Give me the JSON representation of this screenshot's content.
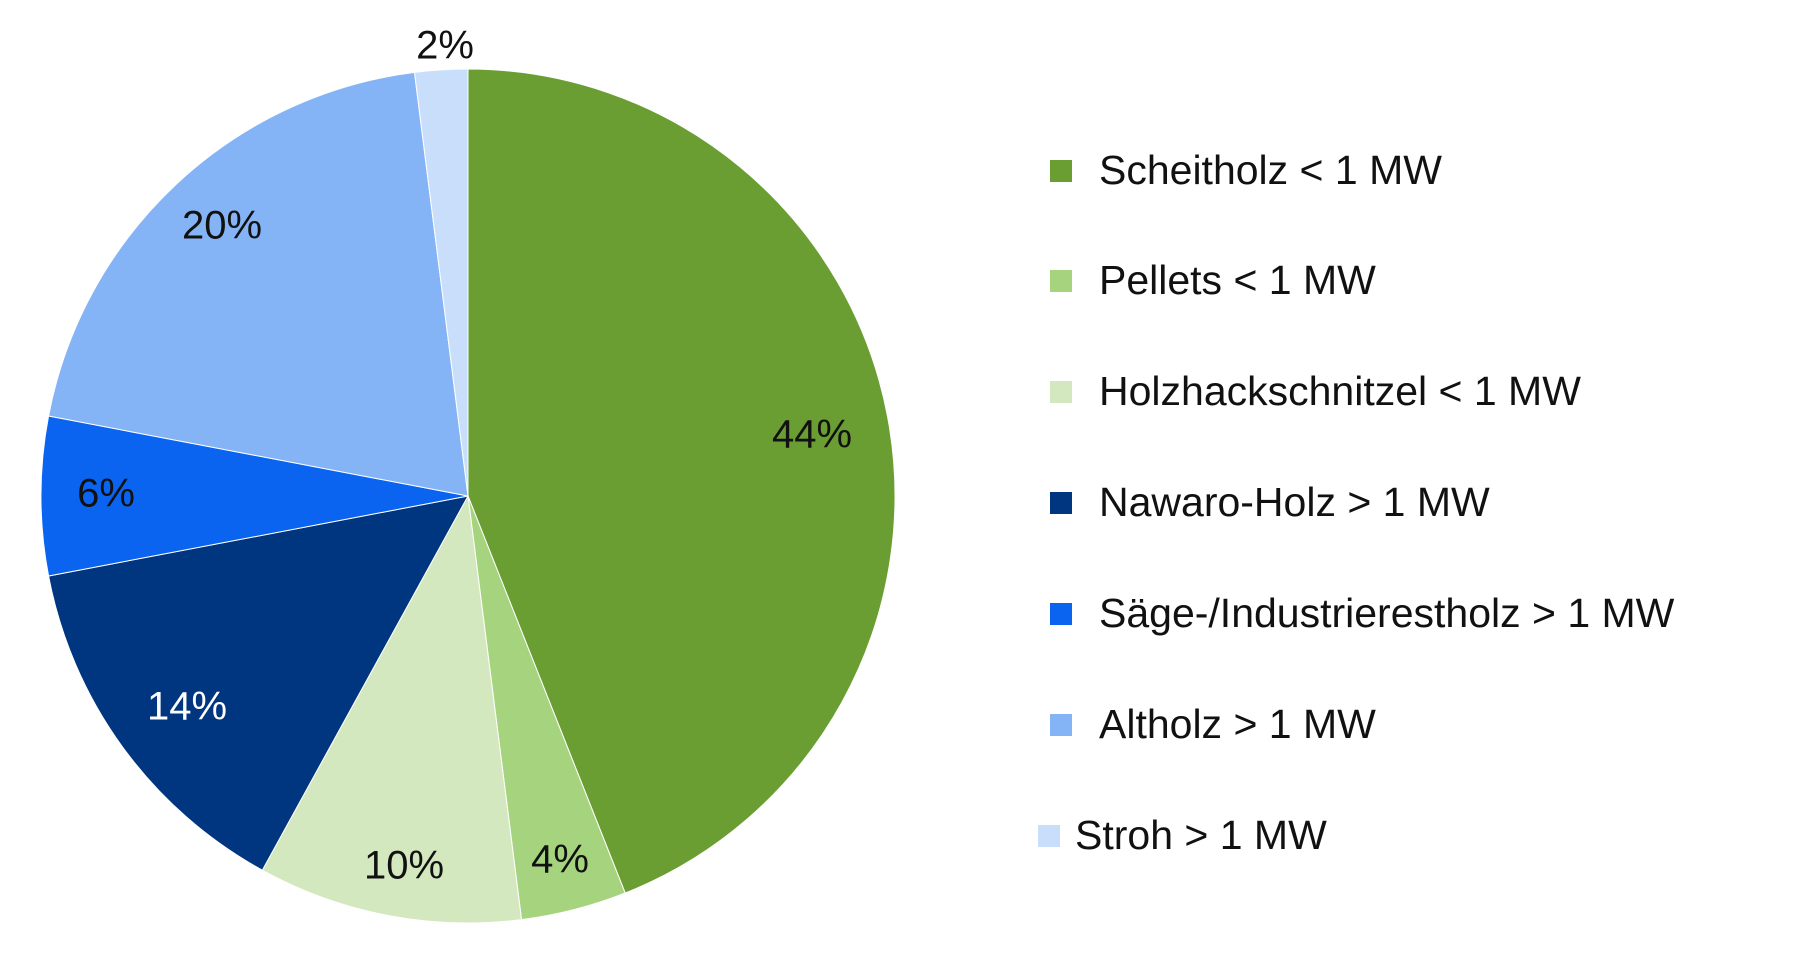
{
  "chart_data": {
    "type": "pie",
    "title": "",
    "legend_position": "right",
    "start_angle": "top, clockwise",
    "slices": [
      {
        "name": "Scheitholz < 1 MW",
        "value": 44,
        "label": "44%",
        "color": "#6a9e32",
        "label_color": "#111111"
      },
      {
        "name": "Pellets < 1 MW",
        "value": 4,
        "label": "4%",
        "color": "#a6d47e",
        "label_color": "#111111"
      },
      {
        "name": "Holzhackschnitzel < 1 MW",
        "value": 10,
        "label": "10%",
        "color": "#d3e8bf",
        "label_color": "#111111"
      },
      {
        "name": "Nawaro-Holz > 1 MW",
        "value": 14,
        "label": "14%",
        "color": "#003580",
        "label_color": "#ffffff"
      },
      {
        "name": "Säge-/Industrierestholz > 1 MW",
        "value": 6,
        "label": "6%",
        "color": "#0a64f0",
        "label_color": "#111111"
      },
      {
        "name": "Altholz > 1 MW",
        "value": 20,
        "label": "20%",
        "color": "#84b4f6",
        "label_color": "#111111"
      },
      {
        "name": "Stroh > 1 MW",
        "value": 2,
        "label": "2%",
        "color": "#c9defa",
        "label_color": "#111111"
      }
    ]
  }
}
